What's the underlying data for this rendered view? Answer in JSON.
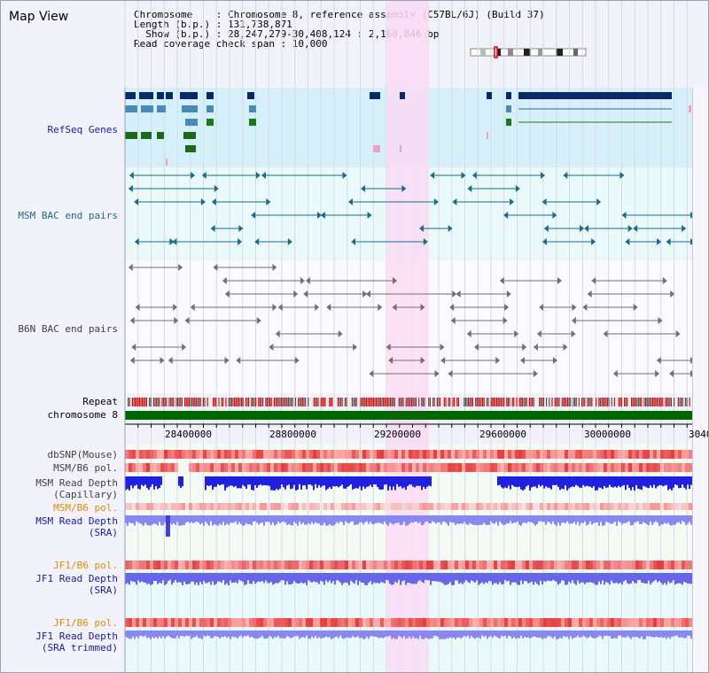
{
  "title": "Map View",
  "info": {
    "line1": "Chromosome    : Chromosome 8, reference assembly (C57BL/6J) (Build 37)",
    "line2": "Length (b.p.) : 131,738,871",
    "line3": "  Show (b.p.) : 28,247,279-30,408,124 : 2,160,846 bp",
    "line4": "Read coverage check span : 10,000"
  },
  "tracks": {
    "refseq": "RefSeq Genes",
    "msm_bac": "MSM BAC end pairs",
    "b6n_bac": "B6N BAC end pairs",
    "repeat": "Repeat",
    "chromosome": "chromosome 8",
    "dbsnp": "dbSNP(Mouse)",
    "msm_b6_pol": "MSM/B6 pol.",
    "msm_depth_cap": "MSM Read Depth\n(Capillary)",
    "msm_b6_pol2": "MSM/B6 pol.",
    "msm_depth_sra": "MSM Read Depth\n(SRA)",
    "jf1_b6_pol": "JF1/B6 pol.",
    "jf1_depth_sra": "JF1 Read Depth\n(SRA)",
    "jf1_b6_pol2": "JF1/B6 pol.",
    "jf1_depth_trim": "JF1 Read Depth\n(SRA trimmed)"
  },
  "axis": {
    "ticks": [
      "28400000",
      "28800000",
      "29200000",
      "29600000",
      "30000000",
      "3040"
    ]
  },
  "colors": {
    "refseq_bg": "#d6f0fa",
    "bac_bg": "#eafafa",
    "highlight": "#fadcf4",
    "chrom": "#006600",
    "snp": "#f28080",
    "depth_cap": "#2020e0",
    "depth_sra": "#8888f0"
  }
}
